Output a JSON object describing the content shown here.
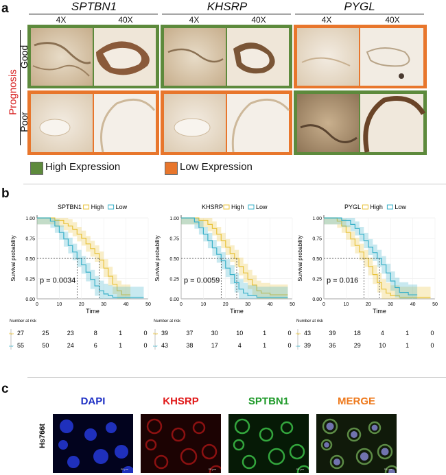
{
  "panel_labels": {
    "a": "a",
    "b": "b",
    "c": "c"
  },
  "panel_a": {
    "genes": [
      "SPTBN1",
      "KHSRP",
      "PYGL"
    ],
    "magnifications": [
      "4X",
      "40X"
    ],
    "prognosis_label": "Prognosis",
    "rows": [
      "Good",
      "Poor"
    ],
    "legend": {
      "high": "High Expression",
      "low": "Low Expression"
    },
    "colors": {
      "high": "#5d8a3c",
      "low": "#e8762c",
      "label_red": "#d61e1e"
    },
    "expression": {
      "SPTBN1": {
        "Good": "high",
        "Poor": "low"
      },
      "KHSRP": {
        "Good": "high",
        "Poor": "low"
      },
      "PYGL": {
        "Good": "low",
        "Poor": "high"
      }
    }
  },
  "chart_data": [
    {
      "type": "line",
      "title": "SPTBN1",
      "legend": [
        "High",
        "Low"
      ],
      "legend_position": "top",
      "colors": {
        "High": "#e8c23a",
        "Low": "#38b0c8"
      },
      "xlabel": "Time",
      "ylabel": "Survival probability",
      "xlim": [
        0,
        50
      ],
      "ylim": [
        0,
        1
      ],
      "xticks": [
        "0",
        "10",
        "20",
        "30",
        "40",
        "50"
      ],
      "yticks": [
        "0.00",
        "0.25",
        "0.50",
        "0.75",
        "1.00"
      ],
      "pvalue": "p = 0.0034",
      "median": {
        "High": 28,
        "Low": 18
      },
      "series": [
        {
          "name": "High",
          "x": [
            0,
            8,
            12,
            14,
            16,
            18,
            20,
            22,
            24,
            26,
            28,
            30,
            32,
            34,
            36,
            38,
            42
          ],
          "y": [
            1,
            0.97,
            0.93,
            0.9,
            0.86,
            0.8,
            0.75,
            0.68,
            0.62,
            0.56,
            0.48,
            0.38,
            0.28,
            0.18,
            0.1,
            0.05,
            0.05
          ]
        },
        {
          "name": "Low",
          "x": [
            0,
            6,
            8,
            10,
            12,
            14,
            16,
            18,
            20,
            22,
            24,
            26,
            28,
            30,
            32,
            34,
            48
          ],
          "y": [
            1,
            0.96,
            0.9,
            0.82,
            0.74,
            0.66,
            0.58,
            0.5,
            0.42,
            0.33,
            0.24,
            0.16,
            0.1,
            0.06,
            0.04,
            0.02,
            0.02
          ]
        }
      ],
      "risk_table": {
        "title": "Number at risk",
        "times": [
          0,
          10,
          20,
          30,
          40,
          50
        ],
        "High": [
          "27",
          "25",
          "23",
          "8",
          "1",
          "0"
        ],
        "Low": [
          "55",
          "50",
          "24",
          "6",
          "1",
          "0"
        ]
      }
    },
    {
      "type": "line",
      "title": "KHSRP",
      "legend": [
        "High",
        "Low"
      ],
      "legend_position": "top",
      "colors": {
        "High": "#e8c23a",
        "Low": "#38b0c8"
      },
      "xlabel": "Time",
      "ylabel": "Survival probability",
      "xlim": [
        0,
        50
      ],
      "ylim": [
        0,
        1
      ],
      "xticks": [
        "0",
        "10",
        "20",
        "30",
        "40",
        "50"
      ],
      "yticks": [
        "0.00",
        "0.25",
        "0.50",
        "0.75",
        "1.00"
      ],
      "pvalue": "p = 0.0059",
      "median": {
        "High": 25,
        "Low": 18
      },
      "series": [
        {
          "name": "High",
          "x": [
            0,
            8,
            12,
            14,
            16,
            18,
            20,
            22,
            24,
            26,
            28,
            30,
            32,
            34,
            36,
            40,
            48
          ],
          "y": [
            1,
            0.97,
            0.92,
            0.87,
            0.8,
            0.72,
            0.64,
            0.56,
            0.5,
            0.4,
            0.32,
            0.24,
            0.17,
            0.1,
            0.07,
            0.05,
            0.05
          ]
        },
        {
          "name": "Low",
          "x": [
            0,
            6,
            8,
            10,
            12,
            14,
            16,
            18,
            20,
            22,
            24,
            26,
            28,
            30,
            34,
            48
          ],
          "y": [
            1,
            0.95,
            0.88,
            0.8,
            0.72,
            0.63,
            0.55,
            0.47,
            0.38,
            0.3,
            0.2,
            0.12,
            0.07,
            0.04,
            0.02,
            0.02
          ]
        }
      ],
      "risk_table": {
        "title": "Number at risk",
        "times": [
          0,
          10,
          20,
          30,
          40,
          50
        ],
        "High": [
          "39",
          "37",
          "30",
          "10",
          "1",
          "0"
        ],
        "Low": [
          "43",
          "38",
          "17",
          "4",
          "1",
          "0"
        ]
      }
    },
    {
      "type": "line",
      "title": "PYGL",
      "legend": [
        "High",
        "Low"
      ],
      "legend_position": "top",
      "colors": {
        "High": "#e8c23a",
        "Low": "#38b0c8"
      },
      "xlabel": "Time",
      "ylabel": "Survival probability",
      "xlim": [
        0,
        50
      ],
      "ylim": [
        0,
        1
      ],
      "xticks": [
        "0",
        "10",
        "20",
        "30",
        "40",
        "50"
      ],
      "yticks": [
        "0.00",
        "0.25",
        "0.50",
        "0.75",
        "1.00"
      ],
      "pvalue": "p = 0.016",
      "median": {
        "High": 18,
        "Low": 25
      },
      "series": [
        {
          "name": "High",
          "x": [
            0,
            6,
            8,
            10,
            12,
            14,
            16,
            18,
            20,
            22,
            24,
            26,
            28,
            30,
            34,
            48
          ],
          "y": [
            1,
            0.96,
            0.9,
            0.82,
            0.74,
            0.66,
            0.58,
            0.5,
            0.4,
            0.3,
            0.2,
            0.12,
            0.07,
            0.04,
            0.02,
            0.02
          ]
        },
        {
          "name": "Low",
          "x": [
            0,
            8,
            12,
            14,
            16,
            18,
            20,
            22,
            24,
            26,
            28,
            30,
            32,
            34,
            38,
            42
          ],
          "y": [
            1,
            0.97,
            0.92,
            0.87,
            0.8,
            0.72,
            0.64,
            0.57,
            0.5,
            0.42,
            0.32,
            0.22,
            0.14,
            0.08,
            0.05,
            0.05
          ]
        }
      ],
      "risk_table": {
        "title": "Number at risk",
        "times": [
          0,
          10,
          20,
          30,
          40,
          50
        ],
        "High": [
          "43",
          "39",
          "18",
          "4",
          "1",
          "0"
        ],
        "Low": [
          "39",
          "36",
          "29",
          "10",
          "1",
          "0"
        ]
      }
    }
  ],
  "panel_c": {
    "cell_line": "Hs766t",
    "channels": [
      {
        "label": "DAPI",
        "color": "#1c2ec4",
        "bg": "#02031e",
        "blob": "#2438d8"
      },
      {
        "label": "KHSRP",
        "color": "#e01818",
        "bg": "#1c0303",
        "blob": "#a01414"
      },
      {
        "label": "SPTBN1",
        "color": "#1f9a2a",
        "bg": "#061a06",
        "blob": "#3cc048"
      },
      {
        "label": "MERGE",
        "color": "#ee7a1e",
        "bg": "#101a0a",
        "blob": "#6aa050"
      }
    ],
    "scale_bar": "20 μm"
  }
}
